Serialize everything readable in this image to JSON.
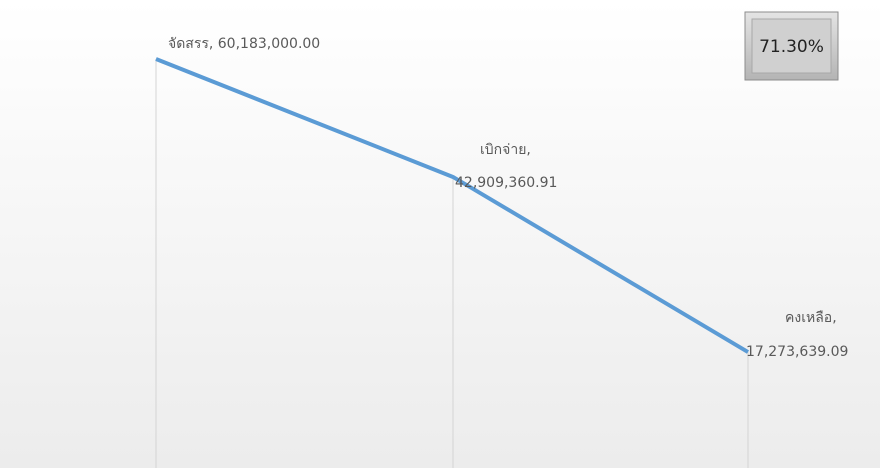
{
  "chart_data": {
    "type": "line",
    "values": [
      60183000,
      42909360.91,
      17273639.09
    ],
    "value_labels": [
      "จัดสรร, 60,183,000.00",
      "เบิกจ่าย, 42,909,360.91",
      "คงเหลือ, 17,273,639.09"
    ],
    "color": "#5b9bd5",
    "annotation": "71.30%"
  }
}
